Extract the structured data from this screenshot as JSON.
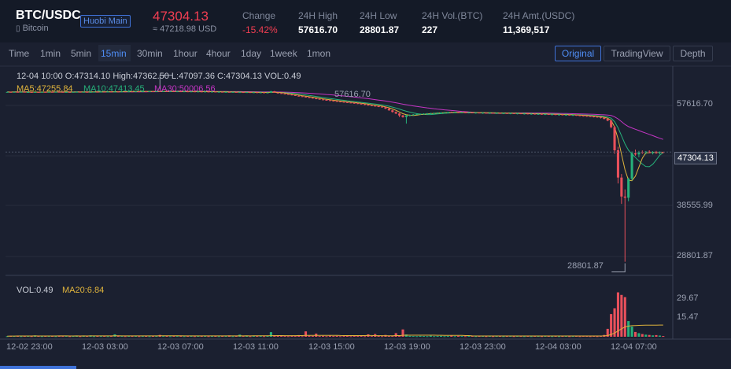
{
  "header": {
    "pair": "BTC/USDC",
    "coin": "Bitcoin",
    "market_badge": "Huobi Main",
    "price": "47304.13",
    "approx": "≈ 47218.98 USD",
    "stats": [
      {
        "label": "Change",
        "value": "-15.42%"
      },
      {
        "label": "24H High",
        "value": "57616.70"
      },
      {
        "label": "24H Low",
        "value": "28801.87"
      },
      {
        "label": "24H Vol.(BTC)",
        "value": "227"
      },
      {
        "label": "24H Amt.(USDC)",
        "value": "11,369,517"
      }
    ]
  },
  "intervals": [
    "Time",
    "1min",
    "5min",
    "15min",
    "30min",
    "1hour",
    "4hour",
    "1day",
    "1week",
    "1mon"
  ],
  "active_interval": "15min",
  "views": [
    "Original",
    "TradingView",
    "Depth"
  ],
  "active_view": "Original",
  "ohlc": {
    "line1": "12-04 10:00   O:47314.10  High:47362.50  L:47097.36  C:47304.13  VOL:0.49",
    "ma5": "MA5:47255.84",
    "ma10": "MA10:47413.45",
    "ma30": "MA30:50006.56"
  },
  "volume_legend": {
    "vol": "VOL:0.49",
    "ma20": "MA20:6.84"
  },
  "colors": {
    "up": "#26b07a",
    "down": "#e8505b",
    "ma5": "#e0b43c",
    "ma10": "#26b07a",
    "ma30": "#c435c4",
    "accent": "#4f8df5"
  },
  "chart_data": {
    "type": "candlestick",
    "price_axis_ticks": [
      "57616.70",
      "38555.99",
      "28801.87"
    ],
    "current_price_label": "47304.13",
    "high_marker": "57616.70",
    "low_marker": "28801.87",
    "volume_axis_ticks": [
      "29.67",
      "15.47"
    ],
    "time_ticks": [
      "12-02 23:00",
      "12-03 03:00",
      "12-03 07:00",
      "12-03 11:00",
      "12-03 15:00",
      "12-03 19:00",
      "12-03 23:00",
      "12-04 03:00",
      "12-04 07:00"
    ],
    "ylim": [
      26500,
      61800
    ],
    "vol_ylim": [
      0,
      40
    ],
    "candles": [
      [
        57400,
        57480,
        57360,
        57440,
        0.4
      ],
      [
        57440,
        57500,
        57390,
        57410,
        0.6
      ],
      [
        57410,
        57470,
        57350,
        57450,
        0.5
      ],
      [
        57450,
        57520,
        57400,
        57430,
        0.7
      ],
      [
        57430,
        57490,
        57380,
        57460,
        0.4
      ],
      [
        57460,
        57510,
        57390,
        57400,
        0.5
      ],
      [
        57400,
        57460,
        57350,
        57420,
        0.6
      ],
      [
        57420,
        57480,
        57370,
        57390,
        0.4
      ],
      [
        57390,
        57450,
        57330,
        57430,
        0.9
      ],
      [
        57430,
        57490,
        57390,
        57410,
        0.5
      ],
      [
        57410,
        57470,
        57360,
        57440,
        0.4
      ],
      [
        57440,
        57500,
        57400,
        57420,
        0.6
      ],
      [
        57420,
        57480,
        57370,
        57450,
        0.5
      ],
      [
        57450,
        57510,
        57410,
        57430,
        0.7
      ],
      [
        57430,
        57490,
        57380,
        57460,
        0.4
      ],
      [
        57460,
        57520,
        57420,
        57440,
        0.8
      ],
      [
        57440,
        57500,
        57390,
        57410,
        0.5
      ],
      [
        57410,
        57460,
        57360,
        57430,
        0.6
      ],
      [
        57430,
        57490,
        57380,
        57400,
        0.4
      ],
      [
        57400,
        57460,
        57350,
        57440,
        0.5
      ],
      [
        57440,
        57510,
        57400,
        57460,
        0.7
      ],
      [
        57460,
        57520,
        57410,
        57430,
        0.4
      ],
      [
        57430,
        57480,
        57370,
        57450,
        0.6
      ],
      [
        57450,
        57510,
        57400,
        57420,
        0.5
      ],
      [
        57420,
        57480,
        57370,
        57440,
        0.9
      ],
      [
        57440,
        57500,
        57400,
        57470,
        0.4
      ],
      [
        57470,
        57530,
        57420,
        57450,
        0.6
      ],
      [
        57450,
        57510,
        57400,
        57480,
        0.5
      ],
      [
        57480,
        57540,
        57430,
        57460,
        0.7
      ],
      [
        57460,
        57520,
        57410,
        57490,
        0.4
      ],
      [
        57490,
        57550,
        57440,
        57470,
        0.5
      ],
      [
        57470,
        57530,
        57420,
        57500,
        1.6
      ],
      [
        57500,
        57560,
        57450,
        57480,
        0.6
      ],
      [
        57480,
        57540,
        57430,
        57510,
        0.5
      ],
      [
        57510,
        57570,
        57460,
        57490,
        0.4
      ],
      [
        57490,
        57550,
        57440,
        57520,
        0.7
      ],
      [
        57520,
        57580,
        57470,
        57500,
        0.5
      ],
      [
        57500,
        57560,
        57450,
        57530,
        0.6
      ],
      [
        57530,
        57590,
        57480,
        57510,
        0.4
      ],
      [
        57510,
        57570,
        57460,
        57540,
        0.5
      ],
      [
        57540,
        57600,
        57490,
        57520,
        0.8
      ],
      [
        57520,
        57580,
        57470,
        57550,
        0.4
      ],
      [
        57550,
        57610,
        57500,
        57530,
        0.6
      ],
      [
        57530,
        57590,
        57480,
        57560,
        0.5
      ],
      [
        57560,
        57617,
        57510,
        57540,
        1.2
      ],
      [
        57540,
        57600,
        57490,
        57560,
        0.5
      ],
      [
        57560,
        57610,
        57500,
        57530,
        0.6
      ],
      [
        57530,
        57590,
        57480,
        57550,
        0.4
      ],
      [
        57550,
        57600,
        57490,
        57520,
        0.7
      ],
      [
        57520,
        57580,
        57460,
        57540,
        0.5
      ],
      [
        57540,
        57590,
        57480,
        57510,
        0.6
      ],
      [
        57510,
        57570,
        57450,
        57530,
        0.4
      ],
      [
        57530,
        57580,
        57470,
        57500,
        0.5
      ],
      [
        57500,
        57560,
        57440,
        57520,
        0.8
      ],
      [
        57520,
        57570,
        57460,
        57490,
        0.4
      ],
      [
        57490,
        57550,
        57430,
        57510,
        0.6
      ],
      [
        57510,
        57560,
        57450,
        57480,
        0.5
      ],
      [
        57480,
        57540,
        57420,
        57500,
        0.7
      ],
      [
        57500,
        57550,
        57440,
        57470,
        0.4
      ],
      [
        57470,
        57530,
        57410,
        57490,
        0.5
      ],
      [
        57490,
        57540,
        57420,
        57440,
        0.8
      ],
      [
        57440,
        57500,
        57380,
        57460,
        0.4
      ],
      [
        57460,
        57510,
        57390,
        57420,
        0.6
      ],
      [
        57420,
        57480,
        57350,
        57440,
        0.5
      ],
      [
        57440,
        57490,
        57370,
        57410,
        0.9
      ],
      [
        57410,
        57470,
        57340,
        57430,
        0.4
      ],
      [
        57430,
        57480,
        57350,
        57390,
        0.6
      ],
      [
        57390,
        57450,
        57310,
        57410,
        1.4
      ],
      [
        57410,
        57460,
        57330,
        57380,
        0.5
      ],
      [
        57380,
        57440,
        57290,
        57400,
        0.7
      ],
      [
        57400,
        57450,
        57300,
        57360,
        0.4
      ],
      [
        57360,
        57420,
        57270,
        57380,
        0.6
      ],
      [
        57380,
        57430,
        57280,
        57340,
        0.5
      ],
      [
        57340,
        57400,
        57250,
        57360,
        0.8
      ],
      [
        57360,
        57410,
        57260,
        57320,
        0.4
      ],
      [
        57320,
        57390,
        57230,
        57340,
        0.6
      ],
      [
        57340,
        57617,
        57260,
        57560,
        3.1
      ],
      [
        57560,
        57600,
        57300,
        57320,
        1.0
      ],
      [
        57320,
        57380,
        57200,
        57240,
        0.7
      ],
      [
        57240,
        57300,
        57120,
        57160,
        0.6
      ],
      [
        57160,
        57220,
        57040,
        57080,
        0.5
      ],
      [
        57080,
        57140,
        56960,
        57000,
        0.4
      ],
      [
        57000,
        57060,
        56870,
        56900,
        0.6
      ],
      [
        56900,
        56960,
        56760,
        56800,
        0.5
      ],
      [
        56800,
        56860,
        56650,
        56720,
        1.1
      ],
      [
        56720,
        56780,
        56580,
        56640,
        0.4
      ],
      [
        56640,
        56700,
        56500,
        56560,
        3.6
      ],
      [
        56560,
        56620,
        56400,
        56460,
        0.7
      ],
      [
        56460,
        56540,
        56320,
        56380,
        0.6
      ],
      [
        56380,
        56440,
        56200,
        56280,
        2.1
      ],
      [
        56280,
        56340,
        56120,
        56180,
        0.5
      ],
      [
        56180,
        56260,
        56030,
        56100,
        0.6
      ],
      [
        56100,
        56180,
        55980,
        56050,
        0.4
      ],
      [
        56050,
        56120,
        55900,
        55980,
        0.7
      ],
      [
        55980,
        56060,
        55820,
        55900,
        0.5
      ],
      [
        55900,
        55980,
        55760,
        55840,
        0.6
      ],
      [
        55840,
        55900,
        55700,
        55780,
        0.4
      ],
      [
        55780,
        55860,
        55640,
        55720,
        0.5
      ],
      [
        55720,
        55800,
        55580,
        55660,
        0.8
      ],
      [
        55660,
        55740,
        55520,
        55600,
        0.4
      ],
      [
        55600,
        55680,
        55460,
        55540,
        0.6
      ],
      [
        55540,
        55620,
        55390,
        55460,
        0.5
      ],
      [
        55460,
        55540,
        55310,
        55380,
        0.7
      ],
      [
        55380,
        55460,
        55200,
        55280,
        0.4
      ],
      [
        55280,
        55360,
        55120,
        55200,
        1.6
      ],
      [
        55200,
        55280,
        55040,
        55120,
        0.5
      ],
      [
        55120,
        55200,
        54960,
        55040,
        1.8
      ],
      [
        55040,
        55120,
        54880,
        54960,
        0.6
      ],
      [
        54960,
        55040,
        54800,
        54880,
        0.4
      ],
      [
        54880,
        54980,
        54540,
        54620,
        1.2
      ],
      [
        54620,
        54700,
        54260,
        54340,
        0.7
      ],
      [
        54340,
        54420,
        53960,
        54060,
        0.5
      ],
      [
        54060,
        54160,
        53700,
        53800,
        2.4
      ],
      [
        53800,
        53900,
        53200,
        53480,
        0.6
      ],
      [
        53480,
        53560,
        53100,
        53200,
        4.9
      ],
      [
        53200,
        53600,
        52100,
        53500,
        1.5
      ],
      [
        53500,
        53640,
        53300,
        53560,
        0.6
      ],
      [
        53560,
        53700,
        53420,
        53640,
        0.5
      ],
      [
        53640,
        53760,
        53540,
        53700,
        0.4
      ],
      [
        53700,
        53800,
        53580,
        53740,
        0.6
      ],
      [
        53740,
        53840,
        53620,
        53780,
        0.5
      ],
      [
        53780,
        53880,
        53660,
        53820,
        0.4
      ],
      [
        53820,
        53920,
        53700,
        53860,
        0.7
      ],
      [
        53860,
        53960,
        53740,
        53900,
        0.4
      ],
      [
        53900,
        53990,
        53790,
        53940,
        0.5
      ],
      [
        53940,
        54020,
        53820,
        53970,
        0.6
      ],
      [
        53970,
        54060,
        53860,
        54000,
        0.4
      ],
      [
        54000,
        54090,
        53890,
        54030,
        0.5
      ],
      [
        54030,
        54120,
        53920,
        53980,
        0.7
      ],
      [
        53980,
        54060,
        53860,
        54010,
        0.4
      ],
      [
        54010,
        54100,
        53900,
        53960,
        0.6
      ],
      [
        53960,
        54040,
        53840,
        53990,
        0.5
      ],
      [
        53990,
        54080,
        53870,
        53940,
        0.4
      ],
      [
        53940,
        54020,
        53820,
        53970,
        0.6
      ],
      [
        53970,
        54060,
        53850,
        53920,
        0.8
      ],
      [
        53920,
        54000,
        53790,
        53950,
        0.4
      ],
      [
        53950,
        54040,
        53830,
        53900,
        0.5
      ],
      [
        53900,
        53980,
        53760,
        53930,
        0.6
      ],
      [
        53930,
        54020,
        53800,
        53880,
        0.4
      ],
      [
        53880,
        53960,
        53740,
        53910,
        0.7
      ],
      [
        53910,
        54000,
        53780,
        53860,
        0.4
      ],
      [
        53860,
        53940,
        53720,
        53890,
        0.5
      ],
      [
        53890,
        53970,
        53750,
        53840,
        0.6
      ],
      [
        53840,
        53920,
        53700,
        53870,
        0.4
      ],
      [
        53870,
        53950,
        53730,
        53820,
        0.5
      ],
      [
        53820,
        53900,
        53680,
        53850,
        0.7
      ],
      [
        53850,
        53930,
        53710,
        53800,
        0.4
      ],
      [
        53800,
        53880,
        53660,
        53830,
        0.6
      ],
      [
        53830,
        53910,
        53690,
        53780,
        0.5
      ],
      [
        53780,
        53860,
        53630,
        53800,
        0.4
      ],
      [
        53800,
        53880,
        53650,
        53750,
        0.8
      ],
      [
        53750,
        53830,
        53600,
        53770,
        0.4
      ],
      [
        53770,
        53850,
        53620,
        53720,
        0.6
      ],
      [
        53720,
        53800,
        53570,
        53740,
        0.5
      ],
      [
        53740,
        53820,
        53590,
        53690,
        0.4
      ],
      [
        53690,
        53770,
        53540,
        53710,
        0.6
      ],
      [
        53710,
        53790,
        53560,
        53660,
        0.5
      ],
      [
        53660,
        53740,
        53500,
        53680,
        0.4
      ],
      [
        53680,
        53760,
        53520,
        53620,
        0.7
      ],
      [
        53620,
        53700,
        53460,
        53640,
        0.4
      ],
      [
        53640,
        53720,
        53480,
        53580,
        0.5
      ],
      [
        53580,
        53660,
        53420,
        53600,
        0.6
      ],
      [
        53600,
        53680,
        53440,
        53540,
        0.4
      ],
      [
        53540,
        53620,
        53380,
        53560,
        0.5
      ],
      [
        53560,
        53640,
        53400,
        53500,
        0.8
      ],
      [
        53500,
        53580,
        53340,
        53460,
        0.4
      ],
      [
        53460,
        53540,
        53290,
        53420,
        0.6
      ],
      [
        53420,
        53500,
        53240,
        53380,
        0.5
      ],
      [
        53380,
        53460,
        53200,
        53320,
        0.4
      ],
      [
        53320,
        53400,
        53140,
        53280,
        0.7
      ],
      [
        53280,
        53360,
        53080,
        53200,
        0.4
      ],
      [
        53200,
        53280,
        52960,
        53080,
        0.6
      ],
      [
        53080,
        53160,
        52800,
        52900,
        1.2
      ],
      [
        52900,
        52980,
        52500,
        52600,
        5.3
      ],
      [
        52600,
        52700,
        51300,
        51500,
        15.2
      ],
      [
        51500,
        51700,
        47000,
        47600,
        19.0
      ],
      [
        47600,
        48200,
        42000,
        43000,
        29.7
      ],
      [
        43000,
        43600,
        38555,
        39800,
        28.0
      ],
      [
        39800,
        41000,
        28802,
        39600,
        26.5
      ],
      [
        39600,
        43000,
        39000,
        42800,
        10.5
      ],
      [
        42800,
        47400,
        42500,
        47100,
        6.8
      ],
      [
        47100,
        47700,
        46700,
        46900,
        3.2
      ],
      [
        46900,
        47500,
        46400,
        47300,
        2.4
      ],
      [
        47300,
        47560,
        47000,
        47200,
        1.8
      ],
      [
        47200,
        47480,
        46900,
        47380,
        1.4
      ],
      [
        47380,
        47600,
        47100,
        47180,
        1.2
      ],
      [
        47180,
        47460,
        46900,
        47260,
        0.9
      ],
      [
        47260,
        47500,
        47000,
        47140,
        1.1
      ],
      [
        47140,
        47420,
        46900,
        47280,
        0.8
      ],
      [
        47314,
        47362,
        47097,
        47304,
        0.49
      ]
    ]
  }
}
